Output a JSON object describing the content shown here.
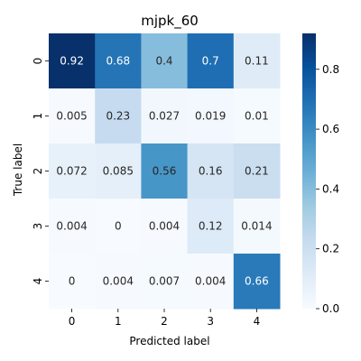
{
  "chart_data": {
    "type": "heatmap",
    "title": "mjpk_60",
    "xlabel": "Predicted label",
    "ylabel": "True label",
    "x_categories": [
      "0",
      "1",
      "2",
      "3",
      "4"
    ],
    "y_categories": [
      "0",
      "1",
      "2",
      "3",
      "4"
    ],
    "values": [
      [
        0.92,
        0.68,
        0.4,
        0.7,
        0.11
      ],
      [
        0.005,
        0.23,
        0.027,
        0.019,
        0.01
      ],
      [
        0.072,
        0.085,
        0.56,
        0.16,
        0.21
      ],
      [
        0.004,
        0,
        0.004,
        0.12,
        0.014
      ],
      [
        0,
        0.004,
        0.007,
        0.004,
        0.66
      ]
    ],
    "value_labels": [
      [
        "0.92",
        "0.68",
        "0.4",
        "0.7",
        "0.11"
      ],
      [
        "0.005",
        "0.23",
        "0.027",
        "0.019",
        "0.01"
      ],
      [
        "0.072",
        "0.085",
        "0.56",
        "0.16",
        "0.21"
      ],
      [
        "0.004",
        "0",
        "0.004",
        "0.12",
        "0.014"
      ],
      [
        "0",
        "0.004",
        "0.007",
        "0.004",
        "0.66"
      ]
    ],
    "colormap": "Blues",
    "color_range": [
      0,
      0.92
    ],
    "colorbar_ticks": [
      0.0,
      0.2,
      0.4,
      0.6,
      0.8
    ],
    "colorbar_tick_labels": [
      "0.0",
      "0.2",
      "0.4",
      "0.6",
      "0.8"
    ],
    "grid": false,
    "legend": "colorbar-right"
  }
}
